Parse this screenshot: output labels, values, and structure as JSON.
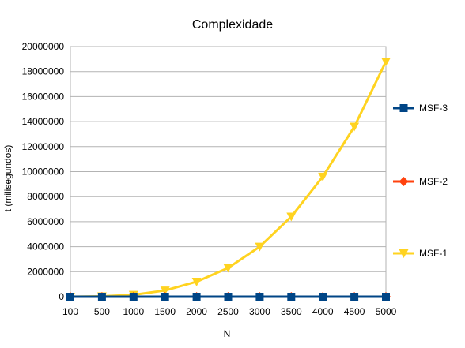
{
  "chart_data": {
    "type": "line",
    "title": "Complexidade",
    "xlabel": "N",
    "ylabel": "t (milisegundos)",
    "categories": [
      "100",
      "500",
      "1000",
      "1500",
      "2000",
      "2500",
      "3000",
      "3500",
      "4000",
      "4500",
      "5000"
    ],
    "ylim": [
      0,
      20000000
    ],
    "yticks": [
      0,
      2000000,
      4000000,
      6000000,
      8000000,
      10000000,
      12000000,
      14000000,
      16000000,
      18000000,
      20000000
    ],
    "grid": "horizontal",
    "legend_position": "right",
    "series": [
      {
        "name": "MSF-3",
        "color": "#004586",
        "marker": "square",
        "values": [
          0,
          0,
          0,
          0,
          0,
          0,
          0,
          0,
          0,
          0,
          0
        ]
      },
      {
        "name": "MSF-2",
        "color": "#ff420e",
        "marker": "diamond",
        "values": [
          0,
          0,
          0,
          0,
          0,
          0,
          0,
          0,
          0,
          0,
          0
        ]
      },
      {
        "name": "MSF-1",
        "color": "#ffd320",
        "marker": "triangle-down",
        "values": [
          0,
          30000,
          150000,
          500000,
          1200000,
          2300000,
          4000000,
          6400000,
          9600000,
          13600000,
          18800000
        ]
      }
    ]
  }
}
